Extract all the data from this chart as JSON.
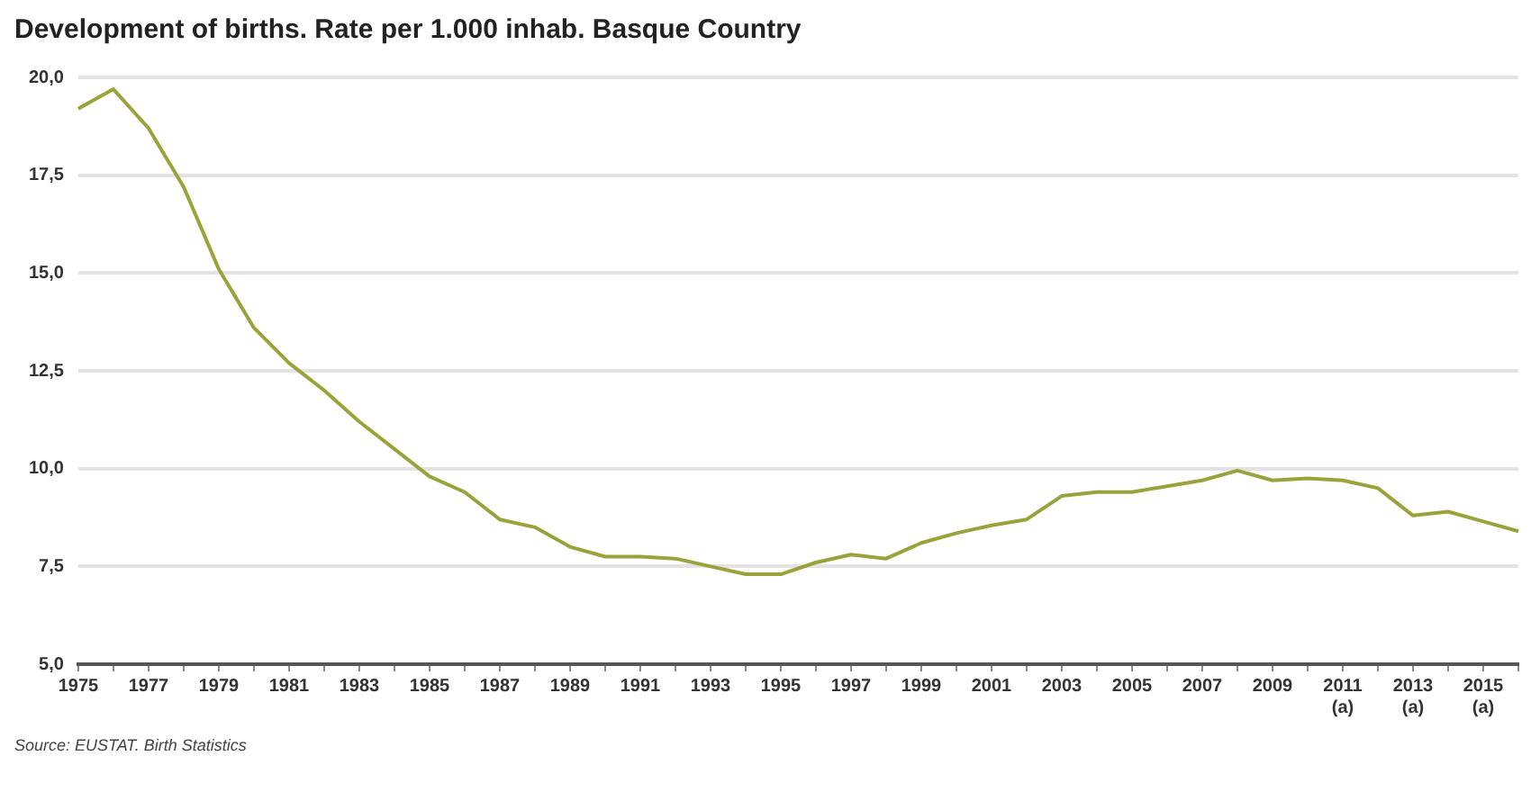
{
  "chart_data": {
    "type": "line",
    "title": "Development of births. Rate per 1.000 inhab. Basque Country",
    "categories": [
      "1975",
      null,
      "1977",
      null,
      "1979",
      null,
      "1981",
      null,
      "1983",
      null,
      "1985",
      null,
      "1987",
      null,
      "1989",
      null,
      "1991",
      null,
      "1993",
      null,
      "1995",
      null,
      "1997",
      null,
      "1999",
      null,
      "2001",
      null,
      "2003",
      null,
      "2005",
      null,
      "2007",
      null,
      "2009",
      null,
      "2011 (a)",
      null,
      "2013 (a)",
      null,
      "2015 (a)",
      null
    ],
    "series": [
      {
        "color": "#9aa33a",
        "values": [
          19.2,
          19.7,
          18.7,
          17.2,
          15.1,
          13.6,
          12.7,
          12.0,
          11.2,
          10.5,
          9.8,
          9.4,
          8.7,
          8.5,
          8.0,
          7.75,
          7.75,
          7.7,
          7.5,
          7.3,
          7.3,
          7.6,
          7.8,
          7.7,
          8.1,
          8.35,
          8.55,
          8.7,
          9.3,
          9.4,
          9.4,
          9.55,
          9.7,
          9.95,
          9.7,
          9.75,
          9.7,
          9.5,
          8.8,
          8.9,
          8.65,
          8.4
        ]
      }
    ],
    "ylim": [
      5,
      20
    ],
    "yticks": [
      {
        "value": 5,
        "label": "5,0"
      },
      {
        "value": 7.5,
        "label": "7,5"
      },
      {
        "value": 10,
        "label": "10,0"
      },
      {
        "value": 12.5,
        "label": "12,5"
      },
      {
        "value": 15,
        "label": "15,0"
      },
      {
        "value": 17.5,
        "label": "17,5"
      },
      {
        "value": 20,
        "label": "20,0"
      }
    ],
    "grid": "y",
    "legend": false,
    "marker": "none",
    "line_style": "solid",
    "annotations": [
      "Source: EUSTAT. Birth Statistics"
    ]
  }
}
